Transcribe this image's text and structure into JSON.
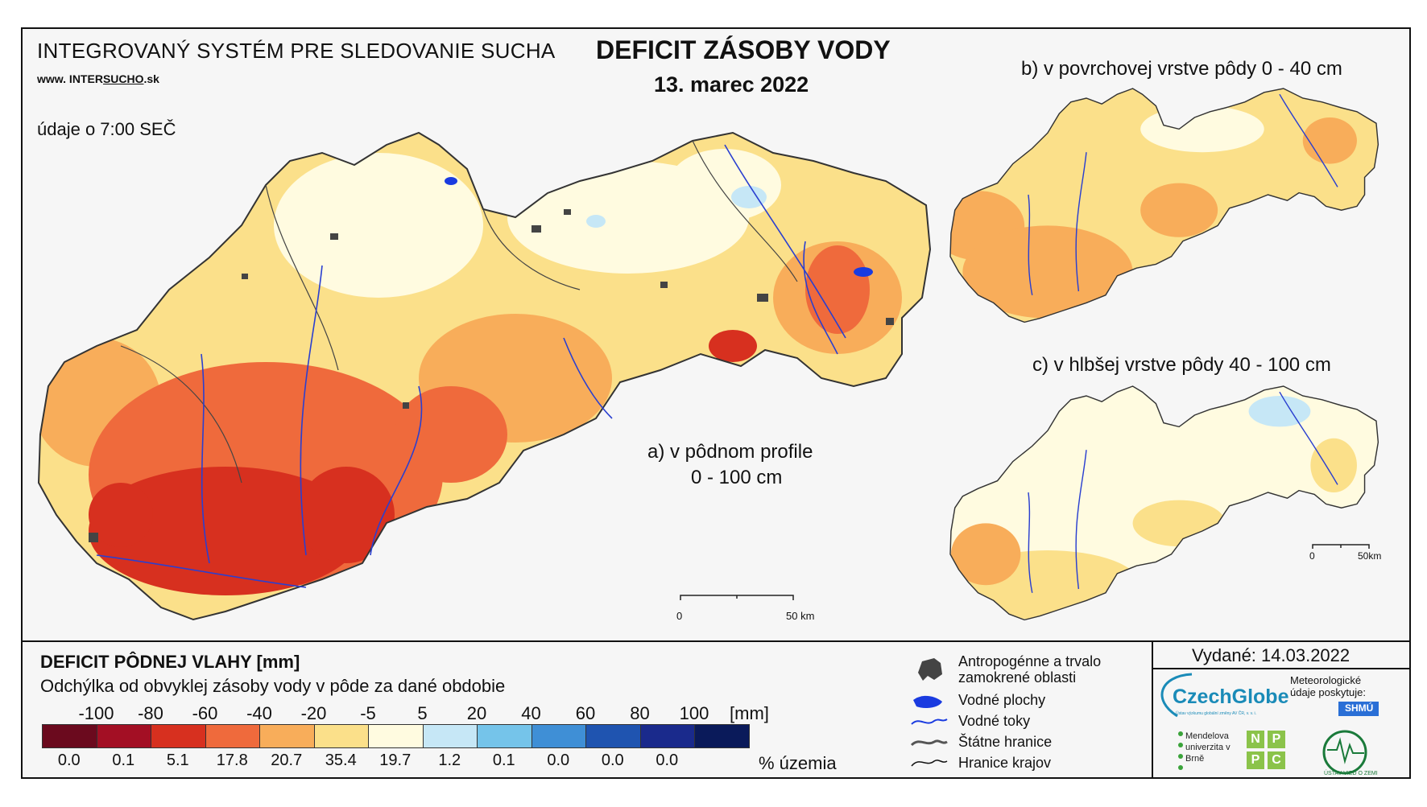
{
  "header": {
    "system_title": "INTEGROVANÝ SYSTÉM PRE SLEDOVANIE SUCHA",
    "website_prefix": "www. INTER",
    "website_underlined": "SUCHO",
    "website_suffix": ".sk",
    "time_note": "údaje o 7:00 SEČ",
    "main_title": "DEFICIT ZÁSOBY VODY",
    "date": "13. marec 2022"
  },
  "maps": {
    "a_line1": "a) v pôdnom profile",
    "a_line2": "0 - 100 cm",
    "b_label": "b) v povrchovej vrstve pôdy 0 - 40 cm",
    "c_label": "c) v hlbšej vrstve pôdy 40 - 100 cm",
    "scale_main": {
      "zero": "0",
      "end": "50 km"
    },
    "scale_small": {
      "zero": "0",
      "end": "50km"
    }
  },
  "legend": {
    "title": "DEFICIT PÔDNEJ VLAHY [mm]",
    "subtitle": "Odchýlka od obvyklej zásoby vody v pôde za dané obdobie",
    "unit": "[mm]",
    "pct_unit": "% územia",
    "class_labels": [
      "-100",
      "-80",
      "-60",
      "-40",
      "-20",
      "-5",
      "5",
      "20",
      "40",
      "60",
      "80",
      "100"
    ],
    "colors": [
      "#6b0a1e",
      "#a30f24",
      "#d7301f",
      "#ef6a3c",
      "#f8ad5a",
      "#fbe08a",
      "#fffbe0",
      "#c6e7f6",
      "#75c4ea",
      "#3f8fd6",
      "#1f54b0",
      "#1a2a8c",
      "#0a1a5a"
    ],
    "percents": [
      "0.0",
      "0.1",
      "5.1",
      "17.8",
      "20.7",
      "35.4",
      "19.7",
      "1.2",
      "0.1",
      "0.0",
      "0.0",
      "0.0"
    ],
    "symbols": {
      "anthropogenic": "Antropogénne a trvalo zamokrené oblasti",
      "water_bodies": "Vodné plochy",
      "streams": "Vodné toky",
      "state_border": "Štátne hranice",
      "region_border": "Hranice krajov"
    }
  },
  "footer": {
    "issued": "Vydané: 14.03.2022",
    "czechglobe": "CzechGlobe",
    "czechglobe_sub": "Ústav výzkumu globální změny AV ČR, v. v. i.",
    "met_provider": "Meteorologické údaje poskytuje:",
    "shmu": "SHMÚ",
    "mendel": "Mendelova univerzita v Brně",
    "nppc": [
      "N",
      "P",
      "P",
      "C"
    ],
    "uvz": "ÚSTAV VIED O ZEMI"
  }
}
